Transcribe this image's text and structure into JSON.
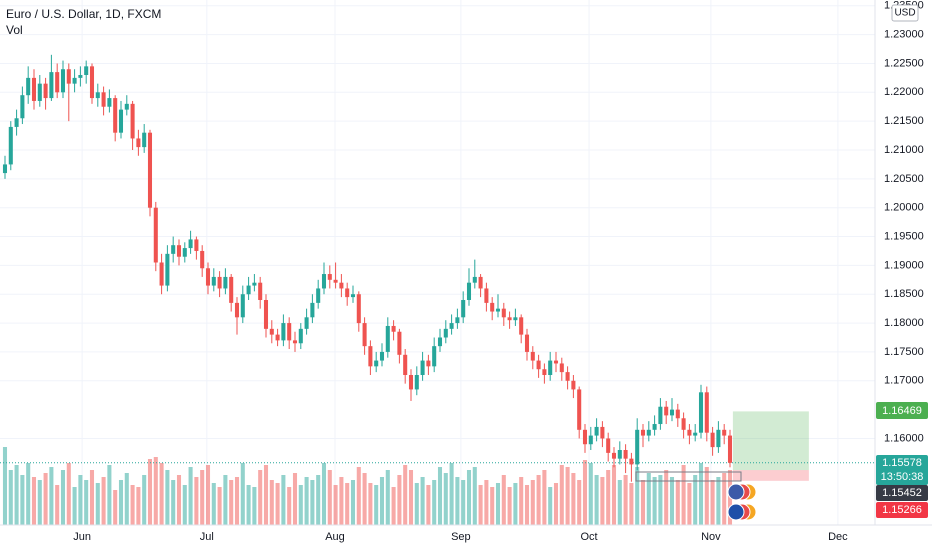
{
  "chart_data": {
    "type": "candlestick",
    "title": "Euro / U.S. Dollar, 1D, FXCM",
    "volume_label": "Vol",
    "currency": "USD",
    "up_color": "#26a69a",
    "down_color": "#ef5350",
    "grid": true,
    "ylim": [
      1.145,
      1.236
    ],
    "yticks": [
      {
        "value": 1.235,
        "label": "1.23500"
      },
      {
        "value": 1.23,
        "label": "1.23000"
      },
      {
        "value": 1.225,
        "label": "1.22500"
      },
      {
        "value": 1.22,
        "label": "1.22000"
      },
      {
        "value": 1.215,
        "label": "1.21500"
      },
      {
        "value": 1.21,
        "label": "1.21000"
      },
      {
        "value": 1.205,
        "label": "1.20500"
      },
      {
        "value": 1.2,
        "label": "1.20000"
      },
      {
        "value": 1.195,
        "label": "1.19500"
      },
      {
        "value": 1.19,
        "label": "1.19000"
      },
      {
        "value": 1.185,
        "label": "1.18500"
      },
      {
        "value": 1.18,
        "label": "1.18000"
      },
      {
        "value": 1.175,
        "label": "1.17500"
      },
      {
        "value": 1.17,
        "label": "1.17000"
      },
      {
        "value": 1.16,
        "label": "1.16000"
      }
    ],
    "xlim": [
      -0.86,
      150
    ],
    "xticks": [
      {
        "value": 13.3,
        "label": "Jun"
      },
      {
        "value": 34.8,
        "label": "Jul"
      },
      {
        "value": 56.9,
        "label": "Aug"
      },
      {
        "value": 78.6,
        "label": "Sep"
      },
      {
        "value": 100.7,
        "label": "Oct"
      },
      {
        "value": 121.7,
        "label": "Nov"
      },
      {
        "value": 143.6,
        "label": "Dec"
      }
    ],
    "ohlc": [
      [
        1.206,
        1.209,
        1.205,
        1.2075
      ],
      [
        1.2075,
        1.215,
        1.2065,
        1.214
      ],
      [
        1.214,
        1.217,
        1.2125,
        1.2155
      ],
      [
        1.2155,
        1.221,
        1.2145,
        1.2195
      ],
      [
        1.2195,
        1.2245,
        1.218,
        1.2225
      ],
      [
        1.2225,
        1.224,
        1.217,
        1.2185
      ],
      [
        1.2185,
        1.223,
        1.2175,
        1.2215
      ],
      [
        1.2215,
        1.2225,
        1.217,
        1.219
      ],
      [
        1.219,
        1.2265,
        1.2185,
        1.2235
      ],
      [
        1.2235,
        1.225,
        1.219,
        1.22
      ],
      [
        1.22,
        1.2255,
        1.219,
        1.224
      ],
      [
        1.224,
        1.225,
        1.215,
        1.2215
      ],
      [
        1.2215,
        1.224,
        1.22,
        1.2225
      ],
      [
        1.2225,
        1.2245,
        1.221,
        1.223
      ],
      [
        1.223,
        1.2255,
        1.2215,
        1.2245
      ],
      [
        1.2245,
        1.225,
        1.218,
        1.219
      ],
      [
        1.219,
        1.2215,
        1.2175,
        1.22
      ],
      [
        1.22,
        1.221,
        1.216,
        1.2175
      ],
      [
        1.2175,
        1.2205,
        1.2165,
        1.219
      ],
      [
        1.219,
        1.2195,
        1.2115,
        1.213
      ],
      [
        1.213,
        1.2185,
        1.212,
        1.217
      ],
      [
        1.217,
        1.2195,
        1.216,
        1.218
      ],
      [
        1.218,
        1.2185,
        1.21,
        1.212
      ],
      [
        1.212,
        1.2135,
        1.209,
        1.2105
      ],
      [
        1.2105,
        1.2145,
        1.2095,
        1.213
      ],
      [
        1.213,
        1.2135,
        1.1985,
        1.2
      ],
      [
        1.2,
        1.201,
        1.189,
        1.1905
      ],
      [
        1.1905,
        1.192,
        1.185,
        1.1865
      ],
      [
        1.1865,
        1.1935,
        1.1855,
        1.192
      ],
      [
        1.192,
        1.195,
        1.1905,
        1.1935
      ],
      [
        1.1935,
        1.1945,
        1.19,
        1.1915
      ],
      [
        1.1915,
        1.194,
        1.1905,
        1.193
      ],
      [
        1.193,
        1.196,
        1.192,
        1.1945
      ],
      [
        1.1945,
        1.195,
        1.191,
        1.1925
      ],
      [
        1.1925,
        1.1935,
        1.188,
        1.1895
      ],
      [
        1.1895,
        1.1905,
        1.185,
        1.1865
      ],
      [
        1.1865,
        1.1895,
        1.1855,
        1.188
      ],
      [
        1.188,
        1.189,
        1.1845,
        1.186
      ],
      [
        1.186,
        1.1895,
        1.185,
        1.188
      ],
      [
        1.188,
        1.1885,
        1.182,
        1.1835
      ],
      [
        1.1835,
        1.1845,
        1.178,
        1.181
      ],
      [
        1.181,
        1.1865,
        1.18,
        1.185
      ],
      [
        1.185,
        1.188,
        1.184,
        1.1865
      ],
      [
        1.1865,
        1.1885,
        1.1855,
        1.187
      ],
      [
        1.187,
        1.188,
        1.1825,
        1.184
      ],
      [
        1.184,
        1.185,
        1.1775,
        1.179
      ],
      [
        1.179,
        1.1805,
        1.1765,
        1.178
      ],
      [
        1.178,
        1.179,
        1.176,
        1.177
      ],
      [
        1.177,
        1.1815,
        1.176,
        1.18
      ],
      [
        1.18,
        1.181,
        1.1755,
        1.177
      ],
      [
        1.177,
        1.1785,
        1.175,
        1.1765
      ],
      [
        1.1765,
        1.18,
        1.1755,
        1.179
      ],
      [
        1.179,
        1.1825,
        1.178,
        1.181
      ],
      [
        1.181,
        1.185,
        1.18,
        1.1835
      ],
      [
        1.1835,
        1.1875,
        1.1825,
        1.186
      ],
      [
        1.186,
        1.1905,
        1.185,
        1.1885
      ],
      [
        1.1885,
        1.19,
        1.186,
        1.1875
      ],
      [
        1.1875,
        1.1905,
        1.186,
        1.187
      ],
      [
        1.187,
        1.1885,
        1.1845,
        1.186
      ],
      [
        1.186,
        1.187,
        1.183,
        1.1845
      ],
      [
        1.1845,
        1.1865,
        1.1835,
        1.185
      ],
      [
        1.185,
        1.1855,
        1.1785,
        1.18
      ],
      [
        1.18,
        1.181,
        1.1745,
        1.176
      ],
      [
        1.176,
        1.177,
        1.171,
        1.1725
      ],
      [
        1.1725,
        1.175,
        1.1715,
        1.1735
      ],
      [
        1.1735,
        1.1765,
        1.1725,
        1.175
      ],
      [
        1.175,
        1.181,
        1.174,
        1.1795
      ],
      [
        1.1795,
        1.1805,
        1.177,
        1.1785
      ],
      [
        1.1785,
        1.179,
        1.173,
        1.1745
      ],
      [
        1.1745,
        1.1755,
        1.1695,
        1.171
      ],
      [
        1.171,
        1.172,
        1.1665,
        1.1685
      ],
      [
        1.1685,
        1.1725,
        1.1675,
        1.171
      ],
      [
        1.171,
        1.175,
        1.17,
        1.1735
      ],
      [
        1.1735,
        1.1745,
        1.171,
        1.1725
      ],
      [
        1.1725,
        1.1775,
        1.1715,
        1.176
      ],
      [
        1.176,
        1.179,
        1.175,
        1.1775
      ],
      [
        1.1775,
        1.1805,
        1.1765,
        1.179
      ],
      [
        1.179,
        1.1815,
        1.178,
        1.18
      ],
      [
        1.18,
        1.1825,
        1.179,
        1.181
      ],
      [
        1.181,
        1.1855,
        1.18,
        1.184
      ],
      [
        1.184,
        1.1895,
        1.183,
        1.187
      ],
      [
        1.187,
        1.191,
        1.186,
        1.188
      ],
      [
        1.188,
        1.1885,
        1.1845,
        1.186
      ],
      [
        1.186,
        1.187,
        1.182,
        1.1835
      ],
      [
        1.1835,
        1.1845,
        1.1805,
        1.182
      ],
      [
        1.182,
        1.185,
        1.181,
        1.1825
      ],
      [
        1.1825,
        1.1835,
        1.1795,
        1.181
      ],
      [
        1.181,
        1.182,
        1.179,
        1.1805
      ],
      [
        1.1805,
        1.1825,
        1.1795,
        1.181
      ],
      [
        1.181,
        1.1815,
        1.1765,
        1.178
      ],
      [
        1.178,
        1.179,
        1.1735,
        1.175
      ],
      [
        1.175,
        1.176,
        1.172,
        1.1735
      ],
      [
        1.1735,
        1.1745,
        1.1705,
        1.172
      ],
      [
        1.172,
        1.173,
        1.1695,
        1.171
      ],
      [
        1.171,
        1.175,
        1.17,
        1.1735
      ],
      [
        1.1735,
        1.175,
        1.1715,
        1.173
      ],
      [
        1.173,
        1.174,
        1.17,
        1.1715
      ],
      [
        1.1715,
        1.1725,
        1.1685,
        1.17
      ],
      [
        1.17,
        1.171,
        1.167,
        1.1685
      ],
      [
        1.1685,
        1.169,
        1.16,
        1.1615
      ],
      [
        1.1615,
        1.1625,
        1.1575,
        1.159
      ],
      [
        1.159,
        1.162,
        1.158,
        1.1605
      ],
      [
        1.1605,
        1.1635,
        1.1595,
        1.162
      ],
      [
        1.162,
        1.163,
        1.1585,
        1.16
      ],
      [
        1.16,
        1.161,
        1.156,
        1.1575
      ],
      [
        1.1575,
        1.1585,
        1.155,
        1.1565
      ],
      [
        1.1565,
        1.1595,
        1.1555,
        1.158
      ],
      [
        1.158,
        1.159,
        1.154,
        1.1565
      ],
      [
        1.1565,
        1.1575,
        1.1525,
        1.1555
      ],
      [
        1.1555,
        1.1635,
        1.1545,
        1.1615
      ],
      [
        1.1615,
        1.1625,
        1.1585,
        1.1605
      ],
      [
        1.1605,
        1.163,
        1.1595,
        1.1615
      ],
      [
        1.1615,
        1.164,
        1.1605,
        1.1625
      ],
      [
        1.1625,
        1.167,
        1.1615,
        1.1655
      ],
      [
        1.1655,
        1.1665,
        1.1625,
        1.164
      ],
      [
        1.164,
        1.167,
        1.163,
        1.165
      ],
      [
        1.165,
        1.166,
        1.162,
        1.1635
      ],
      [
        1.1635,
        1.1645,
        1.16,
        1.1615
      ],
      [
        1.1615,
        1.1625,
        1.159,
        1.1605
      ],
      [
        1.1605,
        1.1625,
        1.1595,
        1.161
      ],
      [
        1.161,
        1.1693,
        1.16,
        1.168
      ],
      [
        1.168,
        1.169,
        1.1595,
        1.161
      ],
      [
        1.161,
        1.162,
        1.157,
        1.1585
      ],
      [
        1.1585,
        1.163,
        1.1575,
        1.1615
      ],
      [
        1.1615,
        1.1625,
        1.159,
        1.1605
      ],
      [
        1.1605,
        1.1615,
        1.155,
        1.15578
      ]
    ],
    "volume": [
      78,
      55,
      60,
      50,
      62,
      48,
      45,
      52,
      58,
      40,
      55,
      62,
      38,
      50,
      45,
      55,
      42,
      48,
      60,
      35,
      45,
      52,
      40,
      38,
      50,
      66,
      68,
      62,
      55,
      45,
      50,
      40,
      58,
      48,
      55,
      60,
      42,
      38,
      50,
      45,
      48,
      62,
      40,
      38,
      55,
      60,
      45,
      42,
      50,
      38,
      52,
      40,
      48,
      45,
      50,
      62,
      55,
      40,
      48,
      42,
      45,
      58,
      52,
      42,
      40,
      48,
      55,
      38,
      50,
      60,
      55,
      42,
      48,
      40,
      45,
      58,
      52,
      62,
      48,
      45,
      55,
      58,
      40,
      45,
      38,
      42,
      50,
      38,
      42,
      48,
      40,
      45,
      50,
      55,
      38,
      42,
      60,
      58,
      52,
      45,
      65,
      62,
      50,
      48,
      55,
      60,
      45,
      50,
      42,
      58,
      45,
      52,
      48,
      50,
      55,
      48,
      45,
      60,
      42,
      50,
      62,
      58,
      45,
      48,
      52,
      55
    ],
    "countdown": "13:50:38",
    "position": {
      "start": 125.5,
      "end": 138.6,
      "target": 1.16469,
      "entry": 1.15452,
      "stop": 1.15266
    }
  }
}
